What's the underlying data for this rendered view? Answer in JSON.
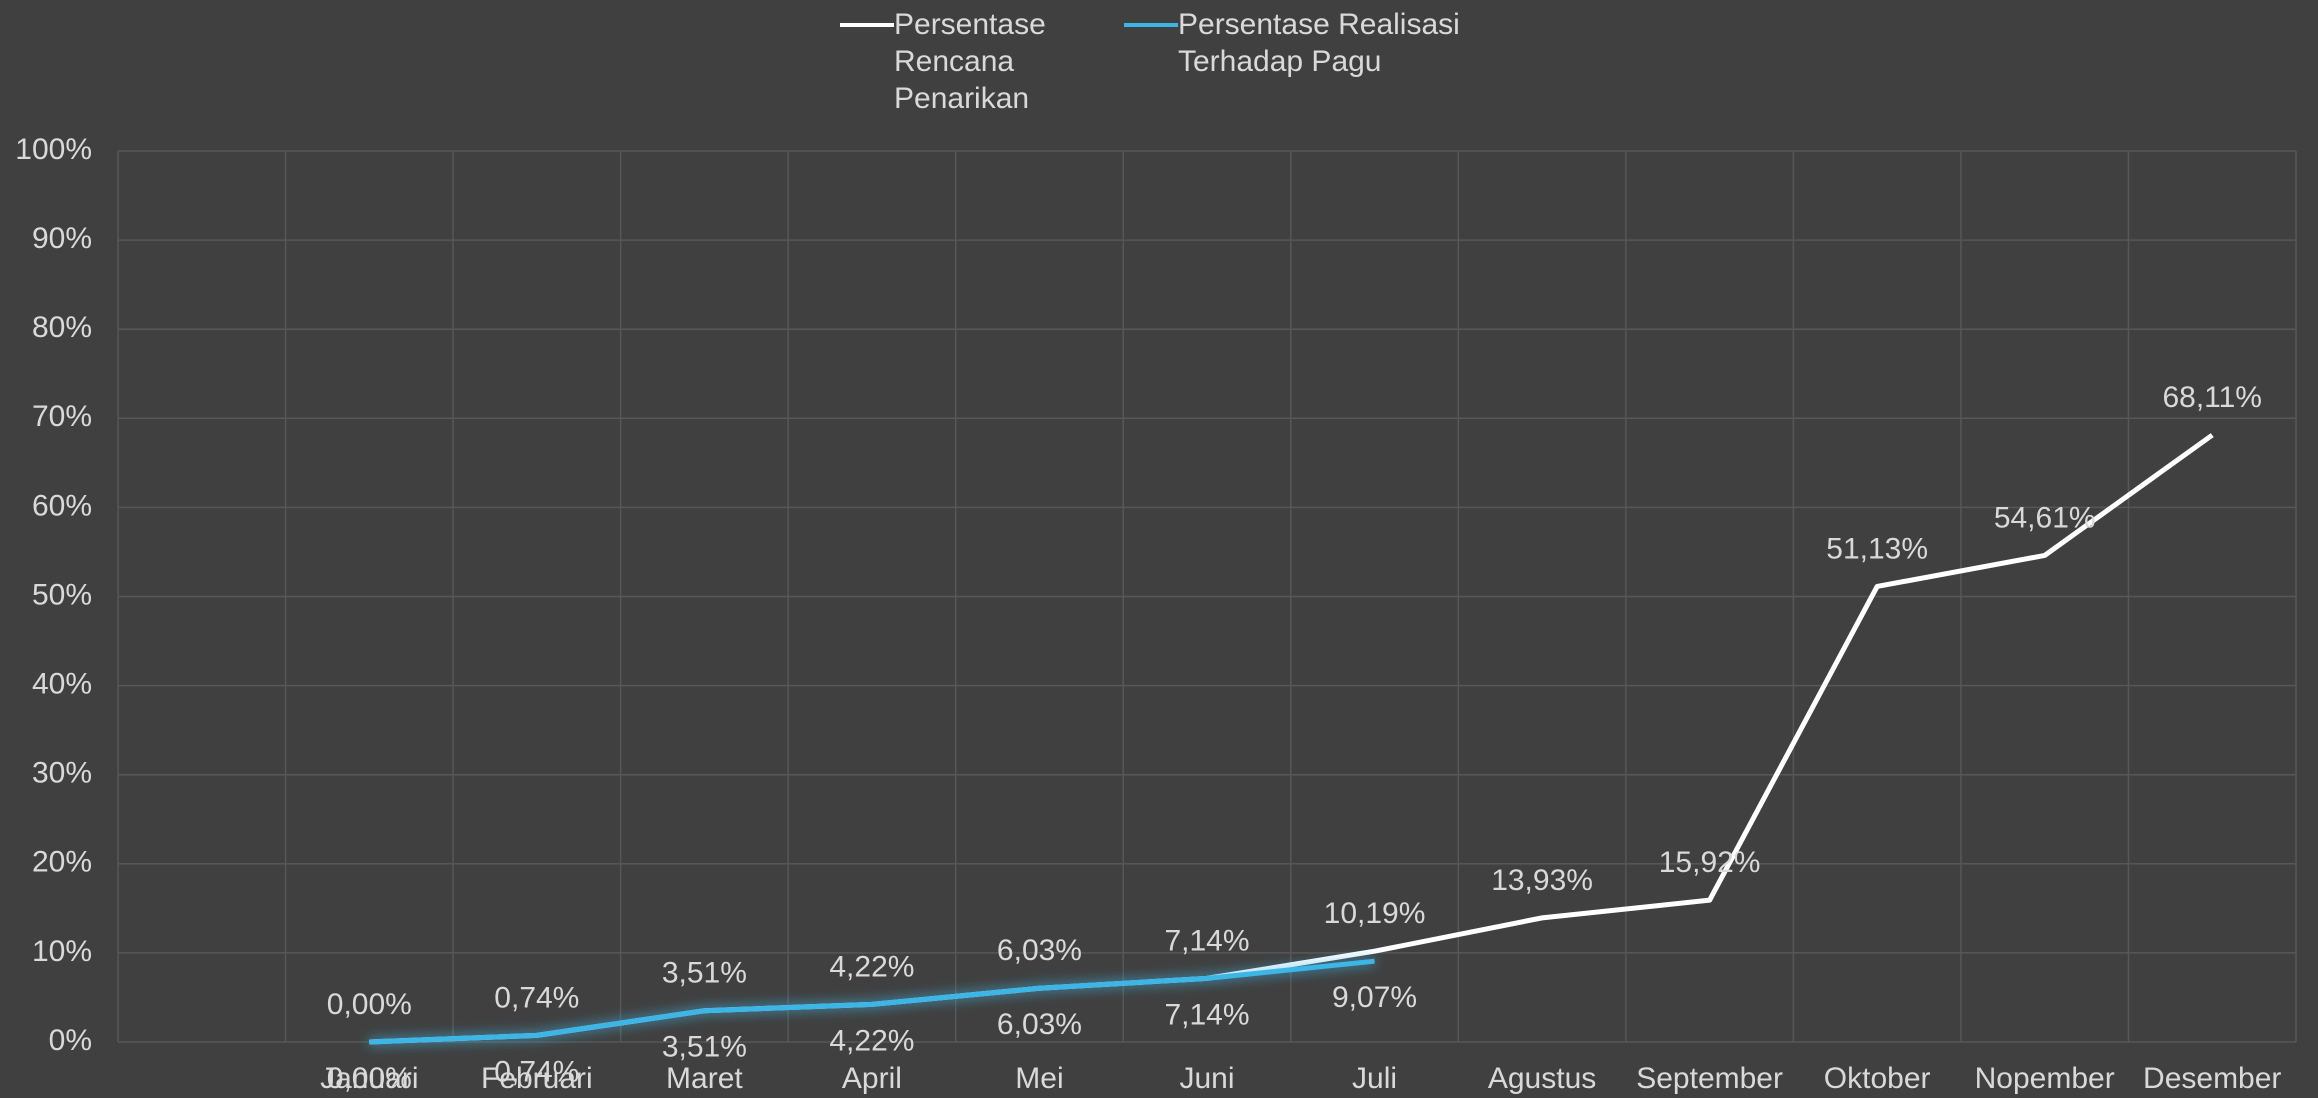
{
  "chart_data": {
    "type": "line",
    "categories": [
      null,
      "Januari",
      "Februari",
      "Maret",
      "April",
      "Mei",
      "Juni",
      "Juli",
      "Agustus",
      "September",
      "Oktober",
      "Nopember",
      "Desember"
    ],
    "series": [
      {
        "name": "Persentase Rencana Penarikan",
        "color": "#ffffff",
        "values": [
          null,
          0,
          0.74,
          3.51,
          4.22,
          6.03,
          7.14,
          10.19,
          13.93,
          15.92,
          51.13,
          54.61,
          68.11
        ],
        "value_labels": [
          null,
          "0,00%",
          "0,74%",
          "3,51%",
          "4,22%",
          "6,03%",
          "7,14%",
          "10,19%",
          "13,93%",
          "15,92%",
          "51,13%",
          "54,61%",
          "68,11%"
        ]
      },
      {
        "name": "Persentase Realisasi Terhadap Pagu",
        "color": "#3db5e6",
        "values": [
          null,
          0,
          0.74,
          3.51,
          4.22,
          6.03,
          7.14,
          9.07,
          null,
          null,
          null,
          null,
          null
        ],
        "value_labels": [
          null,
          "0,00%",
          "0,74%",
          "3,51%",
          "4,22%",
          "6,03%",
          "7,14%",
          "9,07%",
          null,
          null,
          null,
          null,
          null
        ]
      }
    ],
    "ylim": [
      0,
      100
    ],
    "yticks": [
      {
        "value": 0,
        "label": "0%"
      },
      {
        "value": 10,
        "label": "10%"
      },
      {
        "value": 20,
        "label": "20%"
      },
      {
        "value": 30,
        "label": "30%"
      },
      {
        "value": 40,
        "label": "40%"
      },
      {
        "value": 50,
        "label": "50%"
      },
      {
        "value": 60,
        "label": "60%"
      },
      {
        "value": 70,
        "label": "70%"
      },
      {
        "value": 80,
        "label": "80%"
      },
      {
        "value": 90,
        "label": "90%"
      },
      {
        "value": 100,
        "label": "100%"
      }
    ],
    "grid": true,
    "legend": "top"
  }
}
